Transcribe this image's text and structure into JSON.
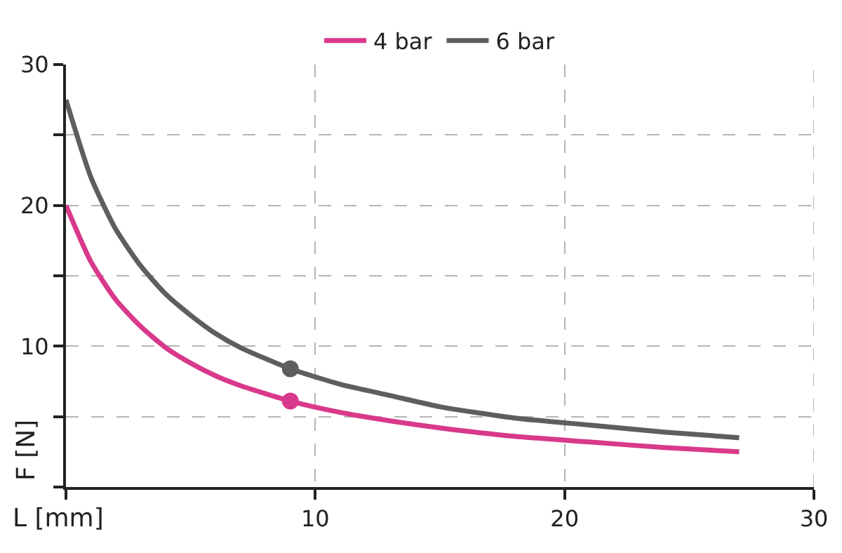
{
  "chart_data": {
    "type": "line",
    "xlabel": "L [mm]",
    "ylabel": "F [N]",
    "x": [
      0,
      1,
      2,
      3,
      4,
      5,
      6,
      7,
      9,
      11,
      13,
      15,
      18,
      21,
      24,
      27
    ],
    "series": [
      {
        "name": "4 bar",
        "color": "#d9398b",
        "marker": "none",
        "values": [
          20,
          16.0,
          13.3,
          11.4,
          9.9,
          8.8,
          7.9,
          7.2,
          6.1,
          5.3,
          4.7,
          4.2,
          3.6,
          3.2,
          2.8,
          2.5
        ]
      },
      {
        "name": "6 bar",
        "color": "#5e5e5e",
        "marker": "none",
        "values": [
          27.5,
          22.0,
          18.3,
          15.7,
          13.7,
          12.2,
          10.9,
          9.9,
          8.4,
          7.3,
          6.5,
          5.7,
          4.9,
          4.4,
          3.9,
          3.5
        ]
      },
      {
        "type": "scatter",
        "x": [
          9
        ],
        "color": "#d9398b",
        "marker": "circle",
        "values": [
          6.1
        ]
      },
      {
        "type": "scatter",
        "x": [
          9
        ],
        "color": "#5e5e5e",
        "marker": "circle",
        "values": [
          8.4
        ]
      }
    ],
    "xlim": [
      0,
      30
    ],
    "ylim": [
      0,
      30
    ],
    "xticks": [
      {
        "value": 0,
        "label": null
      },
      10,
      20,
      30
    ],
    "yticks": [
      {
        "value": 0,
        "label": null
      },
      {
        "value": 5,
        "label": null
      },
      10,
      {
        "value": 15,
        "label": null
      },
      20,
      {
        "value": 25,
        "label": null
      },
      30
    ],
    "grid": true,
    "legend": "top",
    "line_style": "solid"
  }
}
